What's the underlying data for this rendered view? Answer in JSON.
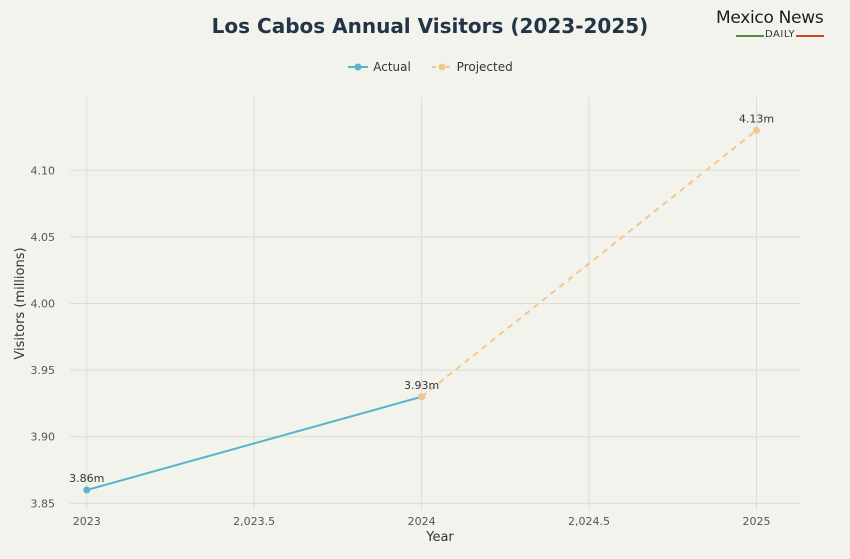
{
  "branding": {
    "name": "Mexico News",
    "sub": "DAILY",
    "colors": {
      "green": "#5e8a3a",
      "red": "#c9472b"
    }
  },
  "chart_data": {
    "type": "line",
    "title": "Los Cabos Annual Visitors (2023-2025)",
    "xlabel": "Year",
    "ylabel": "Visitors (millions)",
    "xlim": [
      2022.95,
      2025.13
    ],
    "ylim": [
      3.845,
      4.155
    ],
    "x_ticks": [
      {
        "value": 2023,
        "label": "2023"
      },
      {
        "value": 2023.5,
        "label": "2,023.5"
      },
      {
        "value": 2024,
        "label": "2024"
      },
      {
        "value": 2024.5,
        "label": "2,024.5"
      },
      {
        "value": 2025,
        "label": "2025"
      }
    ],
    "y_ticks": [
      {
        "value": 3.85,
        "label": "3.85"
      },
      {
        "value": 3.9,
        "label": "3.90"
      },
      {
        "value": 3.95,
        "label": "3.95"
      },
      {
        "value": 4.0,
        "label": "4.00"
      },
      {
        "value": 4.05,
        "label": "4.05"
      },
      {
        "value": 4.1,
        "label": "4.10"
      }
    ],
    "grid": true,
    "legend_position": "top-center",
    "series": [
      {
        "name": "Actual",
        "color": "#5ab4cc",
        "dashed": false,
        "points": [
          {
            "x": 2023,
            "y": 3.86,
            "label": "3.86m"
          },
          {
            "x": 2024,
            "y": 3.93,
            "label": "3.93m"
          }
        ]
      },
      {
        "name": "Projected",
        "color": "#f5c68c",
        "dashed": true,
        "points": [
          {
            "x": 2024,
            "y": 3.93,
            "label": ""
          },
          {
            "x": 2025,
            "y": 4.13,
            "label": "4.13m"
          }
        ]
      }
    ]
  }
}
